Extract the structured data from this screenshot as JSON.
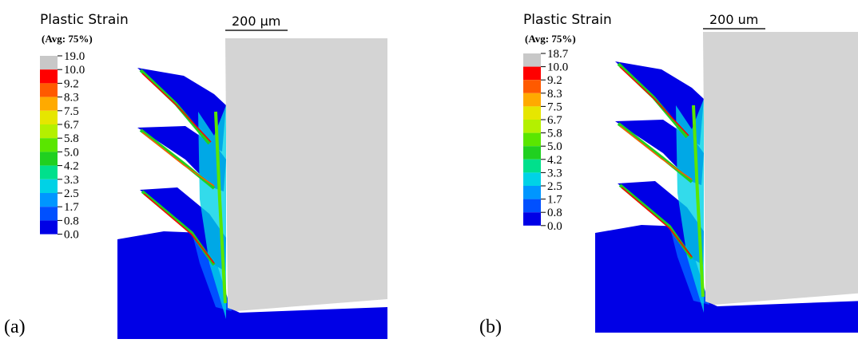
{
  "panels": [
    {
      "label": "(a)",
      "title": "Plastic Strain",
      "average": "(Avg: 75%)",
      "scale_bar": "200 μm",
      "legend": {
        "labels": [
          "19.0",
          "10.0",
          "9.2",
          "8.3",
          "7.5",
          "6.7",
          "5.8",
          "5.0",
          "4.2",
          "3.3",
          "2.5",
          "1.7",
          "0.8",
          "0.0"
        ],
        "colors": [
          "#c8c8c8",
          "#ff0000",
          "#ff5a00",
          "#ffaa00",
          "#e6e600",
          "#b4f000",
          "#5ae600",
          "#20d020",
          "#00e08c",
          "#00d2e6",
          "#0096ff",
          "#0050ff",
          "#0000e6"
        ]
      }
    },
    {
      "label": "(b)",
      "title": "Plastic Strain",
      "average": "(Avg: 75%)",
      "scale_bar": "200 um",
      "legend": {
        "labels": [
          "18.7",
          "10.0",
          "9.2",
          "8.3",
          "7.5",
          "6.7",
          "5.8",
          "5.0",
          "4.2",
          "3.3",
          "2.5",
          "1.7",
          "0.8",
          "0.0"
        ],
        "colors": [
          "#c8c8c8",
          "#ff0000",
          "#ff5a00",
          "#ffaa00",
          "#e6e600",
          "#b4f000",
          "#5ae600",
          "#20d020",
          "#00e08c",
          "#00d2e6",
          "#0096ff",
          "#0050ff",
          "#0000e6"
        ]
      }
    }
  ]
}
